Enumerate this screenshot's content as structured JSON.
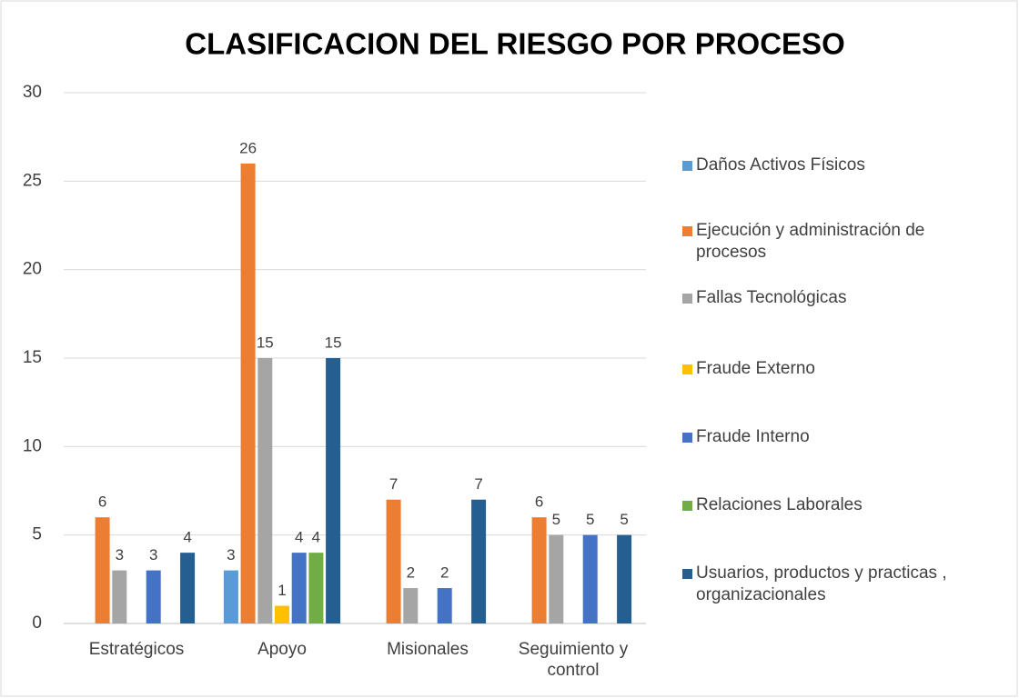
{
  "chart_data": {
    "type": "bar",
    "title": "CLASIFICACION DEL RIESGO POR PROCESO",
    "categories": [
      "Estratégicos",
      "Apoyo",
      "Misionales",
      "Seguimiento y control"
    ],
    "series": [
      {
        "name": "Daños Activos Físicos",
        "color": "#5b9bd5",
        "values": [
          null,
          3,
          null,
          null
        ]
      },
      {
        "name": "Ejecución y administración de procesos",
        "color": "#ed7d31",
        "values": [
          6,
          26,
          7,
          6
        ]
      },
      {
        "name": "Fallas Tecnológicas",
        "color": "#a5a5a5",
        "values": [
          3,
          15,
          2,
          5
        ]
      },
      {
        "name": "Fraude Externo",
        "color": "#ffc000",
        "values": [
          null,
          1,
          null,
          null
        ]
      },
      {
        "name": "Fraude Interno",
        "color": "#4472c4",
        "values": [
          3,
          4,
          2,
          5
        ]
      },
      {
        "name": "Relaciones Laborales",
        "color": "#70ad47",
        "values": [
          null,
          4,
          null,
          null
        ]
      },
      {
        "name": "Usuarios, productos y practicas , organizacionales",
        "color": "#255e91",
        "values": [
          4,
          15,
          7,
          5
        ]
      }
    ],
    "ylim": [
      0,
      30
    ],
    "yticks": [
      0,
      5,
      10,
      15,
      20,
      25,
      30
    ],
    "grid": true,
    "legend": "right"
  }
}
